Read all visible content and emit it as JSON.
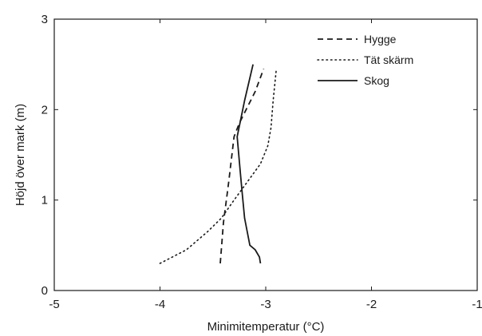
{
  "chart_data": {
    "type": "line",
    "xlabel": "Minimitemperatur (°C)",
    "ylabel": "Höjd över mark (m)",
    "xlim": [
      -5,
      -1
    ],
    "ylim": [
      0,
      3
    ],
    "xticks": [
      -5,
      -4,
      -3,
      -2,
      -1
    ],
    "yticks": [
      0,
      1,
      2,
      3
    ],
    "grid": false,
    "legend_position": "top-right",
    "series": [
      {
        "name": "Hygge",
        "style": "dashed",
        "color": "#1a1a1a",
        "points": [
          [
            -3.43,
            0.3
          ],
          [
            -3.4,
            0.75
          ],
          [
            -3.35,
            1.2
          ],
          [
            -3.3,
            1.7
          ],
          [
            -3.25,
            1.85
          ],
          [
            -3.1,
            2.2
          ],
          [
            -3.02,
            2.45
          ]
        ]
      },
      {
        "name": "Tät skärm",
        "style": "dotted",
        "color": "#1a1a1a",
        "points": [
          [
            -4.0,
            0.3
          ],
          [
            -3.75,
            0.45
          ],
          [
            -3.55,
            0.65
          ],
          [
            -3.42,
            0.8
          ],
          [
            -3.3,
            1.0
          ],
          [
            -3.05,
            1.4
          ],
          [
            -2.98,
            1.6
          ],
          [
            -2.95,
            1.8
          ],
          [
            -2.93,
            2.1
          ],
          [
            -2.9,
            2.45
          ]
        ]
      },
      {
        "name": "Skog",
        "style": "solid",
        "color": "#1a1a1a",
        "points": [
          [
            -3.05,
            0.3
          ],
          [
            -3.06,
            0.37
          ],
          [
            -3.1,
            0.45
          ],
          [
            -3.15,
            0.5
          ],
          [
            -3.2,
            0.8
          ],
          [
            -3.22,
            1.05
          ],
          [
            -3.24,
            1.3
          ],
          [
            -3.27,
            1.7
          ],
          [
            -3.2,
            2.1
          ],
          [
            -3.12,
            2.5
          ]
        ]
      }
    ]
  }
}
